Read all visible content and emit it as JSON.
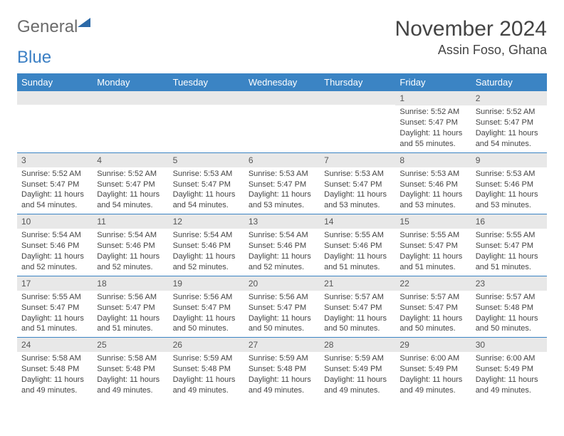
{
  "logo": {
    "text1": "General",
    "text2": "Blue"
  },
  "title": "November 2024",
  "location": "Assin Foso, Ghana",
  "colors": {
    "header_bg": "#3b84c4",
    "row_border": "#3b84c4",
    "daynum_bg": "#e8e8e8",
    "text": "#444444",
    "logo_gray": "#6b6b6b",
    "logo_blue": "#3b7fc4"
  },
  "font": {
    "body_pt": 11,
    "title_pt": 30,
    "location_pt": 18,
    "header_pt": 13,
    "daynum_pt": 12
  },
  "day_names": [
    "Sunday",
    "Monday",
    "Tuesday",
    "Wednesday",
    "Thursday",
    "Friday",
    "Saturday"
  ],
  "weeks": [
    [
      {
        "n": "",
        "sr": "",
        "ss": "",
        "dl": ""
      },
      {
        "n": "",
        "sr": "",
        "ss": "",
        "dl": ""
      },
      {
        "n": "",
        "sr": "",
        "ss": "",
        "dl": ""
      },
      {
        "n": "",
        "sr": "",
        "ss": "",
        "dl": ""
      },
      {
        "n": "",
        "sr": "",
        "ss": "",
        "dl": ""
      },
      {
        "n": "1",
        "sr": "Sunrise: 5:52 AM",
        "ss": "Sunset: 5:47 PM",
        "dl": "Daylight: 11 hours and 55 minutes."
      },
      {
        "n": "2",
        "sr": "Sunrise: 5:52 AM",
        "ss": "Sunset: 5:47 PM",
        "dl": "Daylight: 11 hours and 54 minutes."
      }
    ],
    [
      {
        "n": "3",
        "sr": "Sunrise: 5:52 AM",
        "ss": "Sunset: 5:47 PM",
        "dl": "Daylight: 11 hours and 54 minutes."
      },
      {
        "n": "4",
        "sr": "Sunrise: 5:52 AM",
        "ss": "Sunset: 5:47 PM",
        "dl": "Daylight: 11 hours and 54 minutes."
      },
      {
        "n": "5",
        "sr": "Sunrise: 5:53 AM",
        "ss": "Sunset: 5:47 PM",
        "dl": "Daylight: 11 hours and 54 minutes."
      },
      {
        "n": "6",
        "sr": "Sunrise: 5:53 AM",
        "ss": "Sunset: 5:47 PM",
        "dl": "Daylight: 11 hours and 53 minutes."
      },
      {
        "n": "7",
        "sr": "Sunrise: 5:53 AM",
        "ss": "Sunset: 5:47 PM",
        "dl": "Daylight: 11 hours and 53 minutes."
      },
      {
        "n": "8",
        "sr": "Sunrise: 5:53 AM",
        "ss": "Sunset: 5:46 PM",
        "dl": "Daylight: 11 hours and 53 minutes."
      },
      {
        "n": "9",
        "sr": "Sunrise: 5:53 AM",
        "ss": "Sunset: 5:46 PM",
        "dl": "Daylight: 11 hours and 53 minutes."
      }
    ],
    [
      {
        "n": "10",
        "sr": "Sunrise: 5:54 AM",
        "ss": "Sunset: 5:46 PM",
        "dl": "Daylight: 11 hours and 52 minutes."
      },
      {
        "n": "11",
        "sr": "Sunrise: 5:54 AM",
        "ss": "Sunset: 5:46 PM",
        "dl": "Daylight: 11 hours and 52 minutes."
      },
      {
        "n": "12",
        "sr": "Sunrise: 5:54 AM",
        "ss": "Sunset: 5:46 PM",
        "dl": "Daylight: 11 hours and 52 minutes."
      },
      {
        "n": "13",
        "sr": "Sunrise: 5:54 AM",
        "ss": "Sunset: 5:46 PM",
        "dl": "Daylight: 11 hours and 52 minutes."
      },
      {
        "n": "14",
        "sr": "Sunrise: 5:55 AM",
        "ss": "Sunset: 5:46 PM",
        "dl": "Daylight: 11 hours and 51 minutes."
      },
      {
        "n": "15",
        "sr": "Sunrise: 5:55 AM",
        "ss": "Sunset: 5:47 PM",
        "dl": "Daylight: 11 hours and 51 minutes."
      },
      {
        "n": "16",
        "sr": "Sunrise: 5:55 AM",
        "ss": "Sunset: 5:47 PM",
        "dl": "Daylight: 11 hours and 51 minutes."
      }
    ],
    [
      {
        "n": "17",
        "sr": "Sunrise: 5:55 AM",
        "ss": "Sunset: 5:47 PM",
        "dl": "Daylight: 11 hours and 51 minutes."
      },
      {
        "n": "18",
        "sr": "Sunrise: 5:56 AM",
        "ss": "Sunset: 5:47 PM",
        "dl": "Daylight: 11 hours and 51 minutes."
      },
      {
        "n": "19",
        "sr": "Sunrise: 5:56 AM",
        "ss": "Sunset: 5:47 PM",
        "dl": "Daylight: 11 hours and 50 minutes."
      },
      {
        "n": "20",
        "sr": "Sunrise: 5:56 AM",
        "ss": "Sunset: 5:47 PM",
        "dl": "Daylight: 11 hours and 50 minutes."
      },
      {
        "n": "21",
        "sr": "Sunrise: 5:57 AM",
        "ss": "Sunset: 5:47 PM",
        "dl": "Daylight: 11 hours and 50 minutes."
      },
      {
        "n": "22",
        "sr": "Sunrise: 5:57 AM",
        "ss": "Sunset: 5:47 PM",
        "dl": "Daylight: 11 hours and 50 minutes."
      },
      {
        "n": "23",
        "sr": "Sunrise: 5:57 AM",
        "ss": "Sunset: 5:48 PM",
        "dl": "Daylight: 11 hours and 50 minutes."
      }
    ],
    [
      {
        "n": "24",
        "sr": "Sunrise: 5:58 AM",
        "ss": "Sunset: 5:48 PM",
        "dl": "Daylight: 11 hours and 49 minutes."
      },
      {
        "n": "25",
        "sr": "Sunrise: 5:58 AM",
        "ss": "Sunset: 5:48 PM",
        "dl": "Daylight: 11 hours and 49 minutes."
      },
      {
        "n": "26",
        "sr": "Sunrise: 5:59 AM",
        "ss": "Sunset: 5:48 PM",
        "dl": "Daylight: 11 hours and 49 minutes."
      },
      {
        "n": "27",
        "sr": "Sunrise: 5:59 AM",
        "ss": "Sunset: 5:48 PM",
        "dl": "Daylight: 11 hours and 49 minutes."
      },
      {
        "n": "28",
        "sr": "Sunrise: 5:59 AM",
        "ss": "Sunset: 5:49 PM",
        "dl": "Daylight: 11 hours and 49 minutes."
      },
      {
        "n": "29",
        "sr": "Sunrise: 6:00 AM",
        "ss": "Sunset: 5:49 PM",
        "dl": "Daylight: 11 hours and 49 minutes."
      },
      {
        "n": "30",
        "sr": "Sunrise: 6:00 AM",
        "ss": "Sunset: 5:49 PM",
        "dl": "Daylight: 11 hours and 49 minutes."
      }
    ]
  ]
}
